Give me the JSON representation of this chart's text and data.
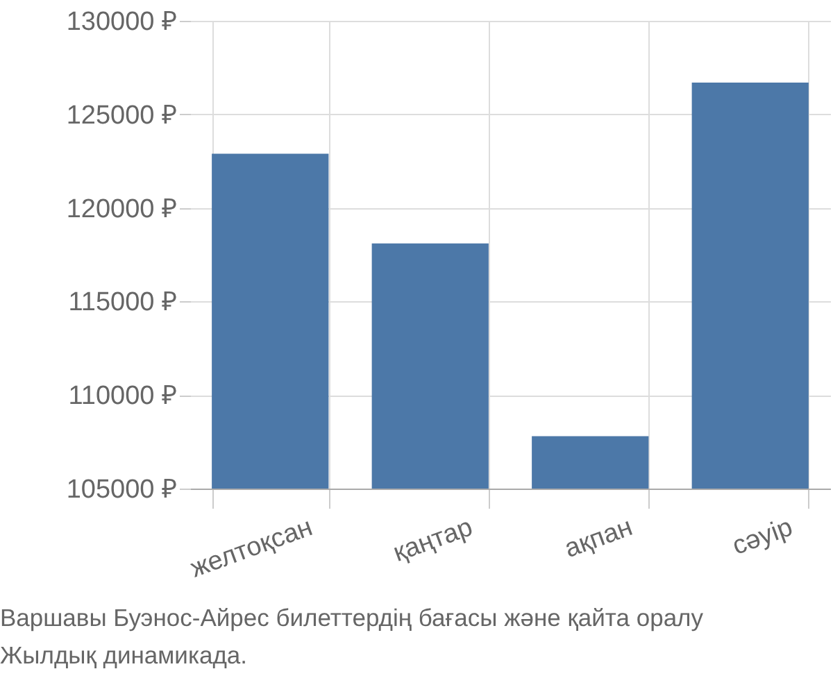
{
  "chart_data": {
    "type": "bar",
    "categories": [
      "желтоқсан",
      "қаңтар",
      "ақпан",
      "сәуір"
    ],
    "values": [
      122900,
      118100,
      107800,
      126700
    ],
    "color": "#4c78a8",
    "ylim": [
      105000,
      130000
    ],
    "yticks": [
      {
        "value": 105000,
        "label": "105000 ₽"
      },
      {
        "value": 110000,
        "label": "110000 ₽"
      },
      {
        "value": 115000,
        "label": "115000 ₽"
      },
      {
        "value": 120000,
        "label": "120000 ₽"
      },
      {
        "value": 125000,
        "label": "125000 ₽"
      },
      {
        "value": 130000,
        "label": "130000 ₽"
      }
    ],
    "grid": true,
    "annotations": [
      "Варшавы Буэнос-Айрес билеттердің бағасы және қайта оралу",
      "Жылдық динамикада."
    ]
  }
}
